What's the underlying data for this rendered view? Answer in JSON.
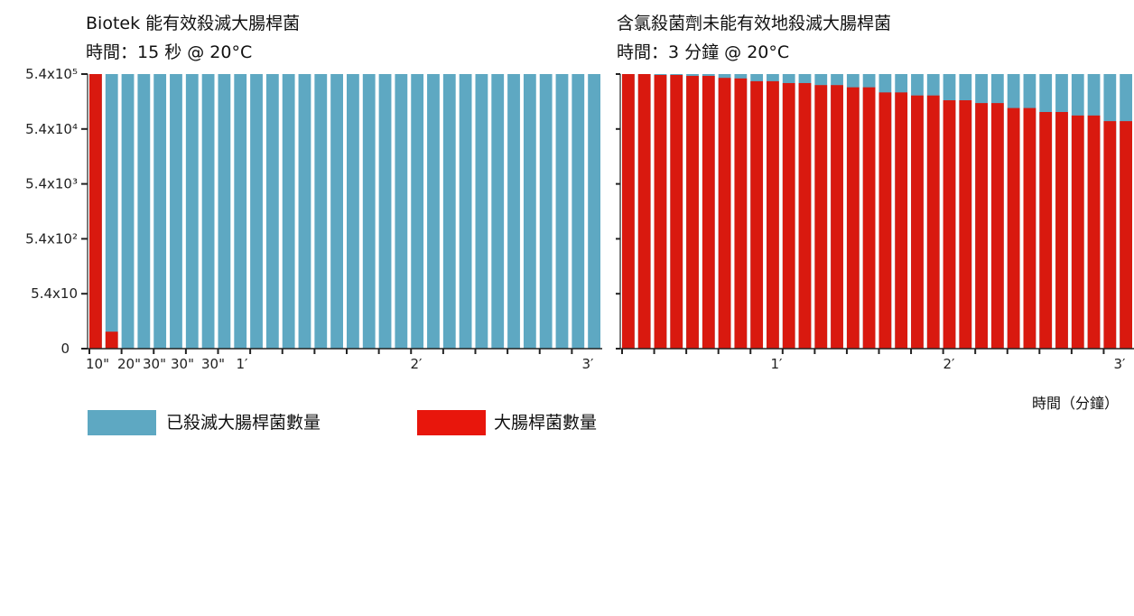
{
  "left_title": {
    "line1": "Biotek 能有效殺滅大腸桿菌",
    "line2": "時間：15 秒  @ 20°C"
  },
  "right_title": {
    "line1": "含氯殺菌劑未能有效地殺滅大腸桿菌",
    "line2": "時間：3 分鐘  @ 20°C"
  },
  "x_unit_label": "時間（分鐘）",
  "legend": [
    {
      "label": "已殺滅大腸桿菌數量",
      "color": "#5ea8c2"
    },
    {
      "label": "大腸桿菌數量",
      "color": "#e8160c"
    }
  ],
  "colors": {
    "killed": "#5ea8c2",
    "remaining": "#d9190f",
    "axis": "#222222"
  },
  "chart_data": [
    {
      "type": "bar",
      "stacked": true,
      "title": "Biotek 能有效殺滅大腸桿菌",
      "subtitle": "時間：15 秒  @ 20°C",
      "y_scale": "log",
      "y_ticks": [
        "0",
        "5.4x10",
        "5.4x10²",
        "5.4x10³",
        "5.4x10⁴",
        "5.4x10⁵"
      ],
      "x_ticks": [
        "10\"",
        "20\"",
        "30\"",
        "30\"",
        "30\"",
        "1′",
        "2′",
        "3′"
      ],
      "bar_count": 32,
      "series": [
        {
          "name": "大腸桿菌數量",
          "values": [
            540000,
            11,
            1.3,
            0,
            0,
            0,
            0,
            0,
            0,
            0,
            0,
            0,
            0,
            0,
            0,
            0,
            0,
            0,
            0,
            0,
            0,
            0,
            0,
            0,
            0,
            0,
            0,
            0,
            0,
            0,
            0,
            0
          ]
        },
        {
          "name": "已殺滅大腸桿菌數量",
          "total": 540000
        }
      ]
    },
    {
      "type": "bar",
      "stacked": true,
      "title": "含氯殺菌劑未能有效地殺滅大腸桿菌",
      "subtitle": "時間：3 分鐘  @ 20°C",
      "y_scale": "log",
      "x_ticks": [
        "1′",
        "2′",
        "3′"
      ],
      "xlabel": "時間（分鐘）",
      "bar_count": 32,
      "series": [
        {
          "name": "大腸桿菌數量",
          "values": [
            540000,
            540000,
            520000,
            520000,
            500000,
            500000,
            460000,
            450000,
            400000,
            400000,
            370000,
            370000,
            340000,
            340000,
            310000,
            310000,
            250000,
            250000,
            220000,
            220000,
            180000,
            180000,
            160000,
            160000,
            130000,
            130000,
            110000,
            110000,
            95000,
            95000,
            75000,
            75000
          ]
        },
        {
          "name": "已殺滅大腸桿菌數量",
          "total": 540000
        }
      ]
    }
  ]
}
